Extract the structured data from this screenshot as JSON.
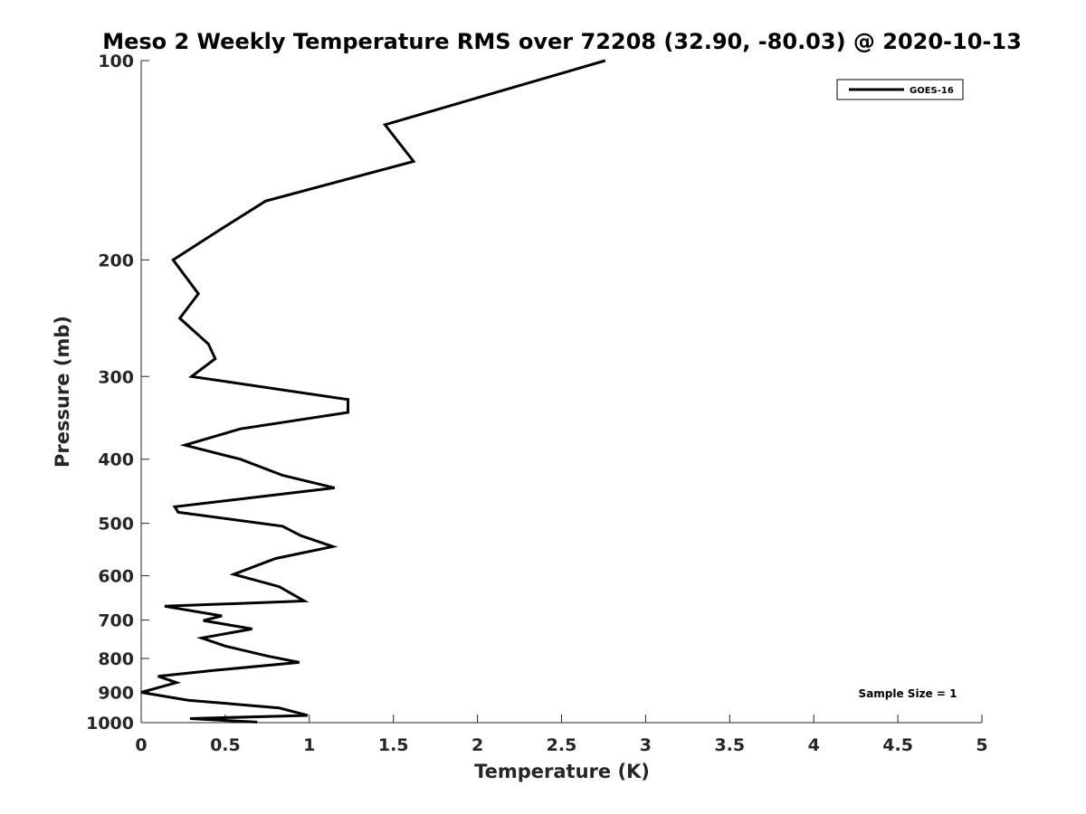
{
  "chart_data": {
    "type": "line",
    "title": "Meso 2 Weekly Temperature RMS over 72208 (32.90, -80.03) @ 2020-10-13",
    "xlabel": "Temperature (K)",
    "ylabel": "Pressure (mb)",
    "xlim": [
      0,
      5
    ],
    "ylim": [
      100,
      1000
    ],
    "y_scale": "log",
    "y_reversed": true,
    "x_ticks": [
      "0",
      "0.5",
      "1",
      "1.5",
      "2",
      "2.5",
      "3",
      "3.5",
      "4",
      "4.5",
      "5"
    ],
    "y_ticks": [
      "100",
      "200",
      "300",
      "400",
      "500",
      "600",
      "700",
      "800",
      "900",
      "1000"
    ],
    "grid": false,
    "legend": {
      "position": "top-right",
      "entries": [
        "GOES-16"
      ]
    },
    "annotation": "Sample Size = 1",
    "series": [
      {
        "name": "GOES-16",
        "color": "#000000",
        "x": [
          2.76,
          1.45,
          1.62,
          0.74,
          0.47,
          0.19,
          0.34,
          0.23,
          0.4,
          0.44,
          0.3,
          1.23,
          1.23,
          0.59,
          0.26,
          0.59,
          0.84,
          1.15,
          0.2,
          0.22,
          0.84,
          0.95,
          1.14,
          0.8,
          0.55,
          0.82,
          0.97,
          0.14,
          0.48,
          0.37,
          0.66,
          0.36,
          0.5,
          0.75,
          0.94,
          0.45,
          0.1,
          0.21,
          0.0,
          0.28,
          0.82,
          0.99,
          0.29,
          0.69
        ],
        "y": [
          100,
          125,
          142,
          163,
          180,
          200,
          225,
          245,
          268,
          282,
          300,
          325,
          340,
          360,
          381,
          400,
          423,
          442,
          472,
          481,
          505,
          522,
          542,
          565,
          597,
          623,
          655,
          667,
          690,
          701,
          722,
          745,
          766,
          793,
          811,
          833,
          851,
          870,
          900,
          925,
          950,
          975,
          986,
          998
        ]
      }
    ]
  }
}
